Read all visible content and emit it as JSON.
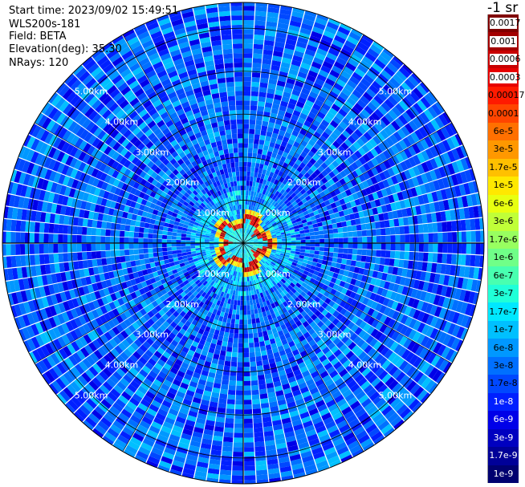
{
  "header": {
    "start_time": "Start time: 2023/09/02 15:49:51",
    "instrument": "WLS200s-181",
    "field": "Field: BETA",
    "elevation": "Elevation(deg): 35.30",
    "nrays": "NRays: 120"
  },
  "colorbar": {
    "unit": "-1 sr",
    "ticks": [
      "0.0017",
      "0.001",
      "0.0006",
      "0.0003",
      "0.00017",
      "0.0001",
      "6e-5",
      "3e-5",
      "1.7e-5",
      "1e-5",
      "6e-6",
      "3e-6",
      "1.7e-6",
      "1e-6",
      "6e-7",
      "3e-7",
      "1.7e-7",
      "1e-7",
      "6e-8",
      "3e-8",
      "1.7e-8",
      "1e-8",
      "6e-9",
      "3e-9",
      "1.7e-9",
      "1e-9"
    ],
    "colors": [
      "#800000",
      "#a30000",
      "#c80000",
      "#e60000",
      "#ff1a00",
      "#ff4500",
      "#ff7000",
      "#ff9800",
      "#ffc000",
      "#ffe800",
      "#e8ff10",
      "#c0ff38",
      "#98ff60",
      "#70ff88",
      "#48ffb0",
      "#20ffd8",
      "#00e8ff",
      "#00c0ff",
      "#0098ff",
      "#0070ff",
      "#0048ff",
      "#0020ff",
      "#0000e8",
      "#0000c0",
      "#000098",
      "#000070"
    ]
  },
  "chart_data": {
    "type": "heatmap",
    "projection": "polar (PPI)",
    "field": "BETA",
    "elevation_deg": 35.3,
    "n_rays": 120,
    "range_rings_km": [
      1,
      2,
      3,
      4,
      5
    ],
    "ring_labels": [
      "1.00km",
      "2.00km",
      "3.00km",
      "4.00km",
      "5.00km"
    ],
    "max_range_km": 5.6,
    "color_scale": "log",
    "value_range": [
      1e-09,
      0.0017
    ],
    "pattern_description": "Strong backscatter (~1e-4 to 1e-3) in a ring near 0.4-0.6 km, green/cyan near center, values ~1e-7 to 1e-8 beyond 1 km"
  }
}
